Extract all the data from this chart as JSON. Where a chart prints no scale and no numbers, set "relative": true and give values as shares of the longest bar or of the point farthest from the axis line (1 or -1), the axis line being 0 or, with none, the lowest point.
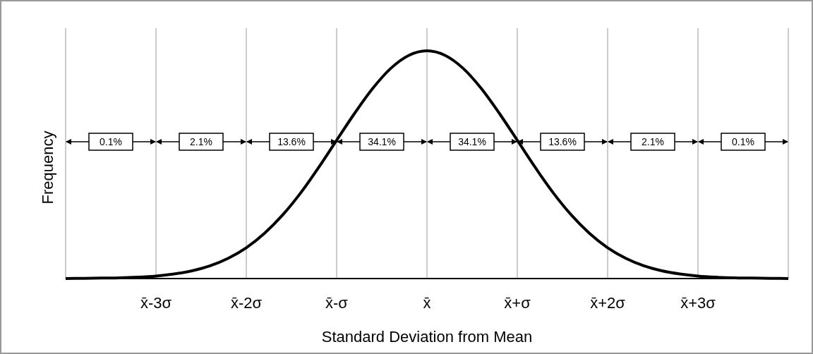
{
  "chart_data": {
    "type": "line",
    "relative": true,
    "xlabel": "Standard Deviation from Mean",
    "ylabel": "Frequency",
    "x": [
      -4,
      -3.8,
      -3.6,
      -3.4,
      -3.2,
      -3,
      -2.8,
      -2.6,
      -2.4,
      -2.2,
      -2,
      -1.8,
      -1.6,
      -1.4,
      -1.2,
      -1,
      -0.8,
      -0.6,
      -0.4,
      -0.2,
      0,
      0.2,
      0.4,
      0.6,
      0.8,
      1,
      1.2,
      1.4,
      1.6,
      1.8,
      2,
      2.2,
      2.4,
      2.6,
      2.8,
      3,
      3.2,
      3.4,
      3.6,
      3.8,
      4
    ],
    "series": [
      {
        "color": "#000000",
        "values": [
          0,
          0.001,
          0.002,
          0.003,
          0.006,
          0.011,
          0.02,
          0.034,
          0.056,
          0.089,
          0.135,
          0.198,
          0.278,
          0.375,
          0.487,
          0.607,
          0.726,
          0.835,
          0.923,
          0.98,
          1,
          0.98,
          0.923,
          0.835,
          0.726,
          0.607,
          0.487,
          0.375,
          0.278,
          0.198,
          0.135,
          0.089,
          0.056,
          0.034,
          0.02,
          0.011,
          0.006,
          0.003,
          0.002,
          0.001,
          0
        ]
      }
    ],
    "xlim": [
      -4,
      4
    ],
    "xticks": [
      {
        "value": -4,
        "label": null
      },
      {
        "value": -3,
        "label": "x̄-3σ"
      },
      {
        "value": -2,
        "label": "x̄-2σ"
      },
      {
        "value": -1,
        "label": "x̄-σ"
      },
      {
        "value": 0,
        "label": "x̄"
      },
      {
        "value": 1,
        "label": "x̄+σ"
      },
      {
        "value": 2,
        "label": "x̄+2σ"
      },
      {
        "value": 3,
        "label": "x̄+3σ"
      },
      {
        "value": 4,
        "label": null
      }
    ],
    "grid": "x",
    "marker": "none",
    "line_style": "solid",
    "annotations": [
      "0.1%",
      "2.1%",
      "13.6%",
      "34.1%",
      "34.1%",
      "13.6%",
      "2.1%",
      "0.1%"
    ]
  }
}
